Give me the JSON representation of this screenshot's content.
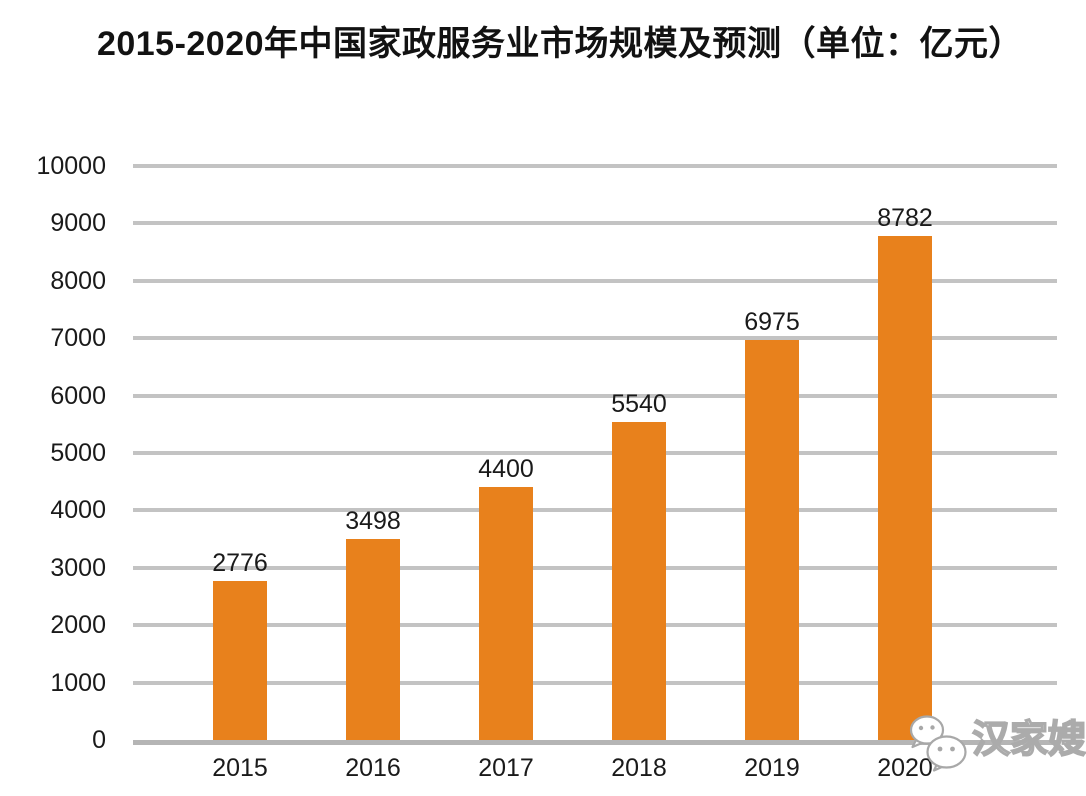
{
  "title": "2015-2020年中国家政服务业市场规模及预测（单位：亿元）",
  "watermark": {
    "label": "汉家嫂",
    "icon": "wechat-icon"
  },
  "chart_data": {
    "type": "bar",
    "title": "2015-2020年中国家政服务业市场规模及预测（单位：亿元）",
    "categories": [
      "2015",
      "2016",
      "2017",
      "2018",
      "2019",
      "2020"
    ],
    "values": [
      2776,
      3498,
      4400,
      5540,
      6975,
      8782
    ],
    "xlabel": "",
    "ylabel": "",
    "ylim": [
      0,
      10000
    ],
    "yticks": [
      0,
      1000,
      2000,
      3000,
      4000,
      5000,
      6000,
      7000,
      8000,
      9000,
      10000
    ],
    "grid": true,
    "legend": "none",
    "bar_color": "#e8811c",
    "gridline_color": "#c3c3c3",
    "axis_color": "#b5b5b5",
    "label_color": "#1a1a1a"
  }
}
